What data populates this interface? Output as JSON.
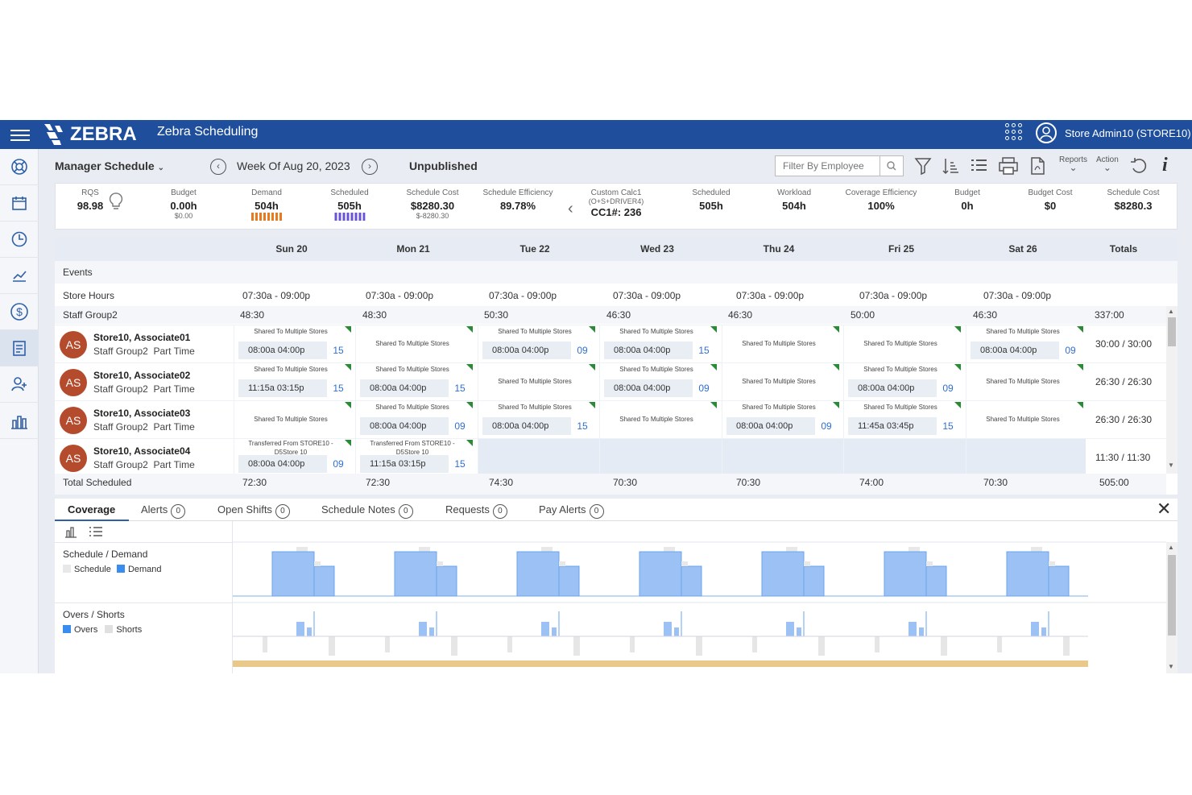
{
  "topbar": {
    "brand": "ZEBRA",
    "app": "Zebra Scheduling",
    "user": "Store Admin10 (STORE10)"
  },
  "sidebar": {
    "icons": [
      "help-icon",
      "calendar-icon",
      "clock-icon",
      "analytics-icon",
      "dollar-icon",
      "schedule-icon",
      "add-user-icon",
      "reports-icon"
    ],
    "active": 5
  },
  "toolbar": {
    "view": "Manager Schedule",
    "week": "Week Of Aug 20, 2023",
    "status": "Unpublished",
    "filter_placeholder": "Filter By Employee",
    "reports": "Reports",
    "action": "Action"
  },
  "kpis": [
    {
      "label": "RQS",
      "value": "98.98"
    },
    {
      "label": "Budget",
      "value": "0.00h",
      "sub": "$0.00"
    },
    {
      "label": "Demand",
      "value": "504h"
    },
    {
      "label": "Scheduled",
      "value": "505h"
    },
    {
      "label": "Schedule Cost",
      "value": "$8280.30",
      "sub": "$-8280.30"
    },
    {
      "label": "Schedule Efficiency",
      "value": "89.78%"
    },
    {
      "label": "Custom Calc1",
      "sub": "(O+S+DRIVER4)",
      "value": "CC1#: 236"
    },
    {
      "label": "Scheduled",
      "value": "505h"
    },
    {
      "label": "Workload",
      "value": "504h"
    },
    {
      "label": "Coverage Efficiency",
      "value": "100%"
    },
    {
      "label": "Budget",
      "value": "0h"
    },
    {
      "label": "Budget Cost",
      "value": "$0"
    },
    {
      "label": "Schedule Cost",
      "value": "$8280.3"
    }
  ],
  "grid": {
    "days": [
      "Sun 20",
      "Mon 21",
      "Tue 22",
      "Wed 23",
      "Thu 24",
      "Fri 25",
      "Sat 26"
    ],
    "totals_label": "Totals",
    "events_label": "Events",
    "store_hours_label": "Store Hours",
    "store_hours": [
      "07:30a - 09:00p",
      "07:30a - 09:00p",
      "07:30a - 09:00p",
      "07:30a - 09:00p",
      "07:30a - 09:00p",
      "07:30a - 09:00p",
      "07:30a - 09:00p"
    ],
    "group_label": "Staff Group2",
    "group_hours": [
      "48:30",
      "48:30",
      "50:30",
      "46:30",
      "46:30",
      "50:00",
      "46:30"
    ],
    "group_total": "337:00",
    "total_label": "Total Scheduled",
    "total_hours": [
      "72:30",
      "72:30",
      "74:30",
      "70:30",
      "70:30",
      "74:00",
      "70:30"
    ],
    "total_total": "505:00",
    "employees": [
      {
        "initials": "AS",
        "name": "Store10, Associate01",
        "group": "Staff Group2",
        "type": "Part Time",
        "total": "30:00 / 30:00",
        "cells": [
          {
            "cap": "Shared To Multiple Stores",
            "time": "08:00a  04:00p",
            "num": "15"
          },
          {
            "cap": "Shared To Multiple Stores"
          },
          {
            "cap": "Shared To Multiple Stores",
            "time": "08:00a  04:00p",
            "num": "09"
          },
          {
            "cap": "Shared To Multiple Stores",
            "time": "08:00a  04:00p",
            "num": "15"
          },
          {
            "cap": "Shared To Multiple Stores"
          },
          {
            "cap": "Shared To Multiple Stores"
          },
          {
            "cap": "Shared To Multiple Stores",
            "time": "08:00a  04:00p",
            "num": "09"
          }
        ]
      },
      {
        "initials": "AS",
        "name": "Store10, Associate02",
        "group": "Staff Group2",
        "type": "Part Time",
        "total": "26:30 / 26:30",
        "cells": [
          {
            "cap": "Shared To Multiple Stores",
            "time": "11:15a  03:15p",
            "num": "15"
          },
          {
            "cap": "Shared To Multiple Stores",
            "time": "08:00a  04:00p",
            "num": "15"
          },
          {
            "cap": "Shared To Multiple Stores"
          },
          {
            "cap": "Shared To Multiple Stores",
            "time": "08:00a  04:00p",
            "num": "09"
          },
          {
            "cap": "Shared To Multiple Stores"
          },
          {
            "cap": "Shared To Multiple Stores",
            "time": "08:00a  04:00p",
            "num": "09"
          },
          {
            "cap": "Shared To Multiple Stores"
          }
        ]
      },
      {
        "initials": "AS",
        "name": "Store10, Associate03",
        "group": "Staff Group2",
        "type": "Part Time",
        "total": "26:30 / 26:30",
        "cells": [
          {
            "cap": "Shared To Multiple Stores"
          },
          {
            "cap": "Shared To Multiple Stores",
            "time": "08:00a  04:00p",
            "num": "09"
          },
          {
            "cap": "Shared To Multiple Stores",
            "time": "08:00a  04:00p",
            "num": "15"
          },
          {
            "cap": "Shared To Multiple Stores"
          },
          {
            "cap": "Shared To Multiple Stores",
            "time": "08:00a  04:00p",
            "num": "09"
          },
          {
            "cap": "Shared To Multiple Stores",
            "time": "11:45a  03:45p",
            "num": "15"
          },
          {
            "cap": "Shared To Multiple Stores"
          }
        ]
      },
      {
        "initials": "AS",
        "name": "Store10, Associate04",
        "group": "Staff Group2",
        "type": "Part Time",
        "total": "11:30 / 11:30",
        "cells": [
          {
            "cap": "Transferred From STORE10 - D5Store 10",
            "time": "08:00a  04:00p",
            "num": "09"
          },
          {
            "cap": "Transferred From STORE10 - D5Store 10",
            "time": "11:15a  03:15p",
            "num": "15"
          },
          {
            "blank": true
          },
          {
            "blank": true
          },
          {
            "blank": true
          },
          {
            "blank": true
          },
          {
            "blank": true
          }
        ]
      }
    ]
  },
  "tabs": [
    {
      "label": "Coverage"
    },
    {
      "label": "Alerts",
      "count": "0"
    },
    {
      "label": "Open Shifts",
      "count": "0"
    },
    {
      "label": "Schedule Notes",
      "count": "0"
    },
    {
      "label": "Requests",
      "count": "0"
    },
    {
      "label": "Pay Alerts",
      "count": "0"
    }
  ],
  "coverage": {
    "schedule_demand_label": "Schedule / Demand",
    "schedule_legend": "Schedule",
    "demand_legend": "Demand",
    "overs_shorts_label": "Overs / Shorts",
    "overs_legend": "Overs",
    "shorts_legend": "Shorts",
    "colors": {
      "demand": "#9cc1f4",
      "schedule": "#e8e8e8",
      "overs": "#9cc1f4",
      "shorts": "#e6e6e6",
      "budget_bar": "#e9c98a"
    }
  }
}
